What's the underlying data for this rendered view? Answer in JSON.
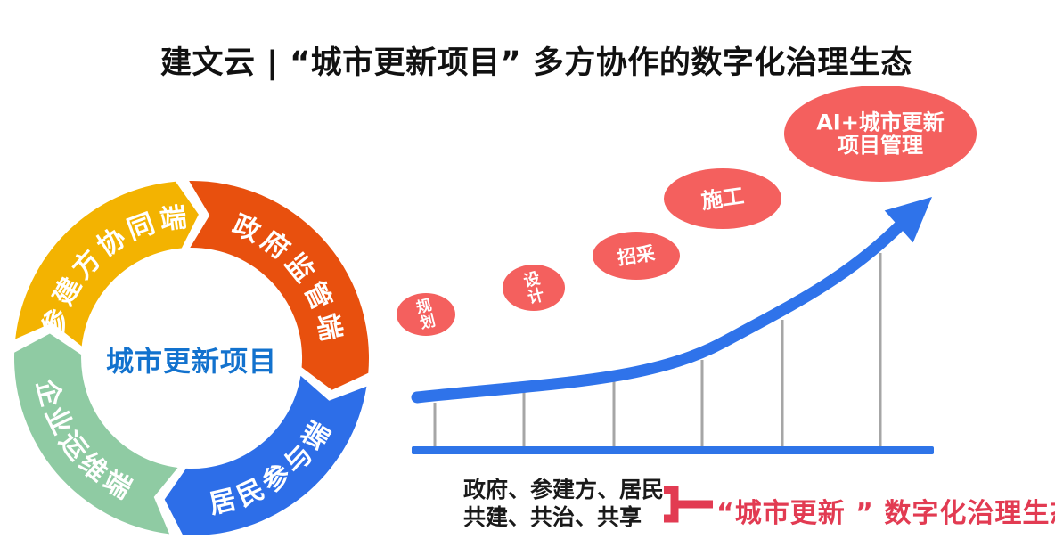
{
  "title": "建文云 |  “城市更新项目”  多方协作的数字化治理生态",
  "colors": {
    "title_text": "#111111",
    "ring_center_text": "#1272CE",
    "arrow_blue": "#2F73EA",
    "baseline_blue": "#2E74E8",
    "dropline_gray": "#A6A6A6",
    "bubble_coral": "#F4605E",
    "bubble_text": "#FFFFFF",
    "ring_label_text": "#FFFFFF",
    "accent_red": "#E23B52",
    "footer_text": "#1A1A1A"
  },
  "ring": {
    "center_label": "城市更新项目",
    "segments": [
      {
        "label": "政府监管端",
        "color": "#E8500E"
      },
      {
        "label": "居民参与端",
        "color": "#2D6EE8"
      },
      {
        "label": "企业运维端",
        "color": "#8FCBA3"
      },
      {
        "label": "参建方协同端",
        "color": "#F3B301"
      }
    ]
  },
  "journey": {
    "stages": [
      {
        "label": "规划"
      },
      {
        "label": "设计"
      },
      {
        "label": "招采"
      },
      {
        "label": "施工"
      }
    ],
    "peak": {
      "line1": "AI+城市更新",
      "line2": "项目管理"
    }
  },
  "footer": {
    "left_line1": "政府、参建方、居民",
    "left_line2": "共建、共治、共享",
    "result": "“城市更新 ”  数字化治理生态"
  }
}
